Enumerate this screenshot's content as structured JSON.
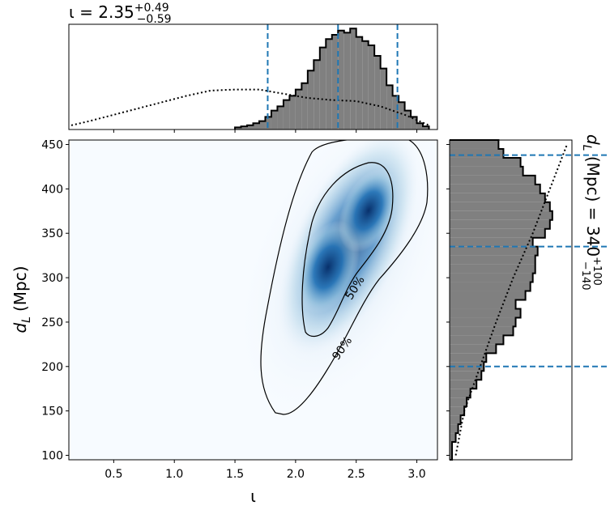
{
  "chart_data": [
    {
      "type": "histogram",
      "title": "ι = 2.35",
      "title_upper": "+0.49",
      "title_lower": "−0.59",
      "xlim": [
        0.13,
        3.17
      ],
      "ylim": [
        0,
        100
      ],
      "xticks": [
        0.5,
        1,
        1.5,
        2,
        2.5,
        3
      ],
      "bins": [
        1.5,
        1.55,
        1.6,
        1.65,
        1.7,
        1.75,
        1.8,
        1.85,
        1.9,
        1.95,
        2.0,
        2.05,
        2.1,
        2.15,
        2.2,
        2.25,
        2.3,
        2.35,
        2.4,
        2.45,
        2.5,
        2.55,
        2.6,
        2.65,
        2.7,
        2.75,
        2.8,
        2.85,
        2.9,
        2.95,
        3.0,
        3.05,
        3.1
      ],
      "values": [
        2,
        3,
        4,
        6,
        8,
        12,
        18,
        22,
        28,
        32,
        38,
        44,
        56,
        66,
        78,
        86,
        90,
        94,
        92,
        96,
        88,
        84,
        80,
        70,
        58,
        42,
        32,
        26,
        18,
        12,
        6,
        3
      ],
      "color": "#808080",
      "prior": {
        "x": [
          0.15,
          0.3,
          0.5,
          0.7,
          0.9,
          1.1,
          1.3,
          1.5,
          1.7,
          1.9,
          2.1,
          2.3,
          2.5,
          2.7,
          2.9,
          3.1
        ],
        "values": [
          4,
          8,
          14,
          20,
          26,
          32,
          37,
          38,
          38,
          34,
          30,
          28,
          27,
          22,
          14,
          4
        ]
      },
      "markers": [
        1.77,
        2.35,
        2.84
      ],
      "marker_color": "#1f77b4"
    },
    {
      "type": "density",
      "xlabel": "ι",
      "ylabel": [
        "d",
        "L",
        "(Mpc)"
      ],
      "xlim": [
        0.13,
        3.17
      ],
      "ylim": [
        95,
        455
      ],
      "xticks": [
        0.5,
        {
          "value": 1,
          "label": "1.0"
        },
        1.5,
        {
          "value": 2,
          "label": "2.0"
        },
        2.5,
        {
          "value": 3,
          "label": "3.0"
        }
      ],
      "yticks": [
        100,
        150,
        200,
        250,
        300,
        350,
        400,
        450
      ],
      "contour_labels": [
        "50%",
        "90%"
      ]
    },
    {
      "type": "histogram-horizontal",
      "label": [
        "d",
        "L",
        " (Mpc) = 340"
      ],
      "label_upper": "+100",
      "label_lower": "−140",
      "ylim": [
        95,
        455
      ],
      "xlim": [
        0,
        100
      ],
      "yticks": [
        100,
        150,
        200,
        250,
        300,
        350,
        400,
        450
      ],
      "bins": [
        95,
        105,
        115,
        125,
        135,
        145,
        155,
        165,
        175,
        185,
        195,
        205,
        215,
        225,
        235,
        245,
        255,
        265,
        275,
        285,
        295,
        305,
        315,
        325,
        335,
        345,
        355,
        365,
        375,
        385,
        395,
        405,
        415,
        425,
        435,
        445,
        455
      ],
      "values": [
        2,
        2,
        5,
        7,
        9,
        12,
        14,
        17,
        22,
        26,
        28,
        30,
        38,
        44,
        52,
        54,
        58,
        54,
        62,
        66,
        68,
        70,
        70,
        72,
        68,
        78,
        82,
        84,
        82,
        78,
        74,
        70,
        60,
        58,
        44,
        40
      ],
      "color": "#808080",
      "prior": {
        "y": [
          100,
          150,
          200,
          250,
          300,
          350,
          400,
          450
        ],
        "values": [
          5,
          12,
          25,
          38,
          52,
          68,
          82,
          96
        ]
      },
      "markers": [
        200,
        335,
        438
      ],
      "marker_color": "#1f77b4"
    }
  ]
}
